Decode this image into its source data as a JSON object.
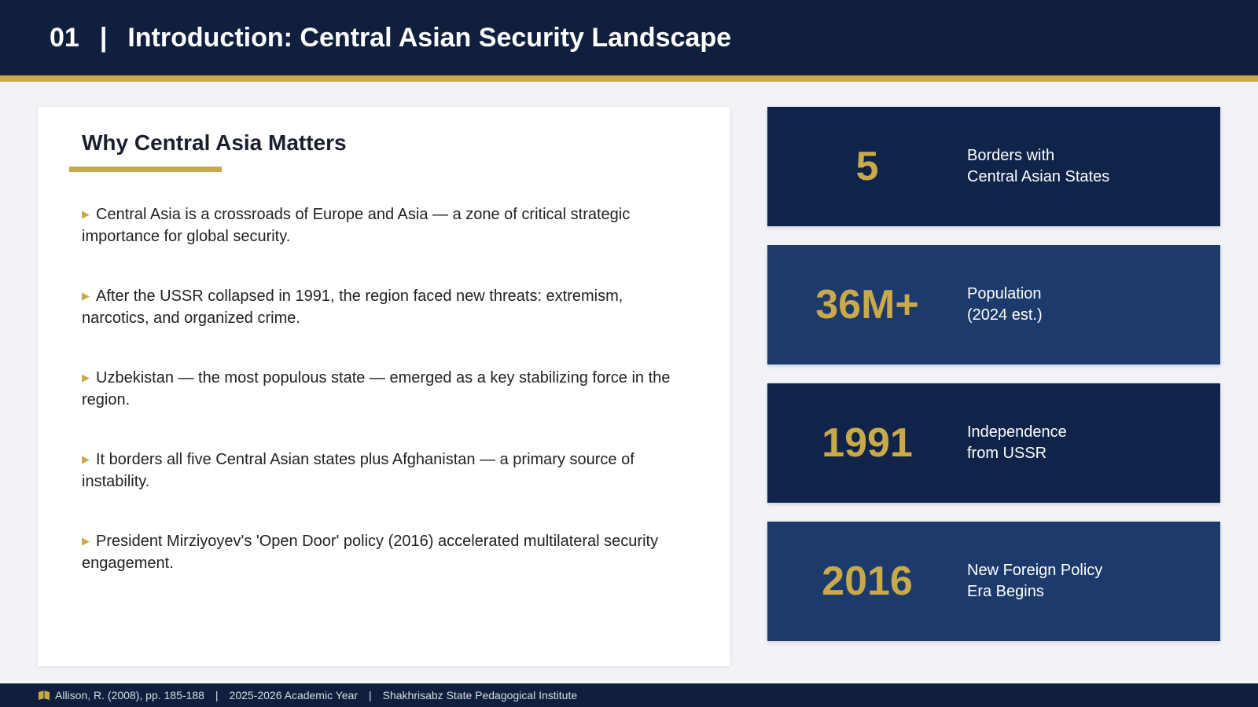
{
  "header": {
    "number": "01",
    "separator": "|",
    "title": "Introduction: Central Asian Security Landscape"
  },
  "main": {
    "heading": "Why Central Asia Matters",
    "bullets": [
      "Central Asia is a crossroads of Europe and Asia — a zone of critical strategic importance for global security.",
      "After the USSR collapsed in 1991, the region faced new threats: extremism, narcotics, and organized crime.",
      "Uzbekistan — the most populous state — emerged as a key stabilizing force in the region.",
      "It borders all five Central Asian states plus Afghanistan — a primary source of instability.",
      "President Mirziyoyev's 'Open Door' policy (2016) accelerated multilateral security engagement."
    ]
  },
  "stats": [
    {
      "value": "5",
      "label": [
        "Borders with",
        "Central Asian States"
      ]
    },
    {
      "value": "36M+",
      "label": [
        "Population",
        "(2024 est.)"
      ]
    },
    {
      "value": "1991",
      "label": [
        "Independence",
        "from USSR"
      ]
    },
    {
      "value": "2016",
      "label": [
        "New Foreign Policy",
        "Era Begins"
      ]
    }
  ],
  "footer": {
    "separator": "|",
    "items": [
      "Allison, R. (2008), pp. 185-188",
      "2025-2026 Academic Year",
      "Shakhrisabz State Pedagogical Institute"
    ]
  }
}
